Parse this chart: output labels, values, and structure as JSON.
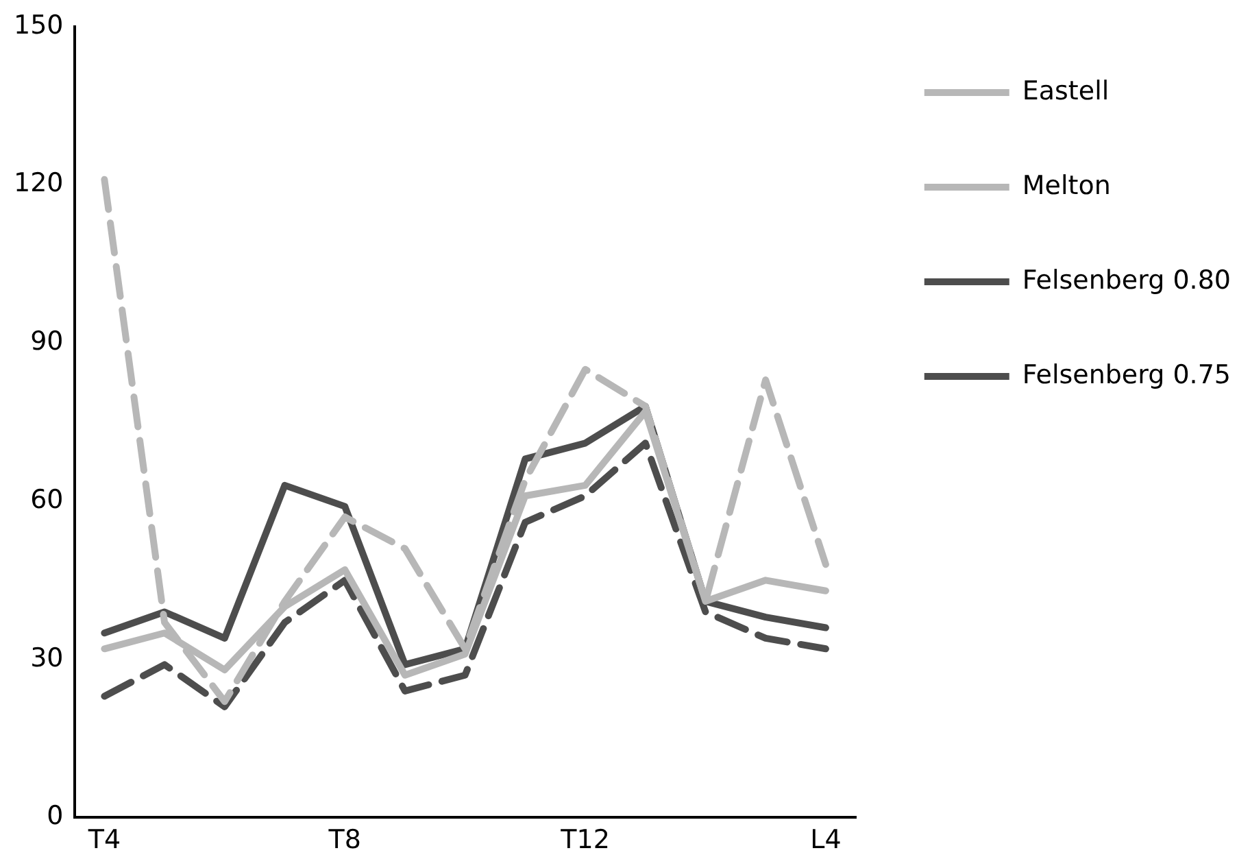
{
  "chart_data": {
    "type": "line",
    "categories": [
      "T4",
      null,
      null,
      null,
      "T8",
      null,
      null,
      null,
      "T12",
      null,
      null,
      null,
      "L4"
    ],
    "series": [
      {
        "name": "Eastell",
        "color": "#b7b7b7",
        "line_style": "dashed",
        "values": [
          121,
          37,
          22,
          41,
          57,
          51,
          32,
          64,
          85,
          78,
          41,
          83,
          48
        ]
      },
      {
        "name": "Melton",
        "color": "#b7b7b7",
        "line_style": "solid",
        "values": [
          32,
          35,
          28,
          40,
          47,
          27,
          31,
          61,
          63,
          77,
          41,
          45,
          43
        ]
      },
      {
        "name": "Felsenberg 0.80",
        "color": "#4d4d4d",
        "line_style": "solid",
        "values": [
          35,
          39,
          34,
          63,
          59,
          29,
          32,
          68,
          71,
          78,
          41,
          38,
          36
        ]
      },
      {
        "name": "Felsenberg 0.75",
        "color": "#4d4d4d",
        "line_style": "dashed",
        "values": [
          23,
          29,
          21,
          37,
          45,
          24,
          27,
          56,
          61,
          71,
          39,
          34,
          32
        ]
      }
    ],
    "ylim": [
      0,
      150
    ],
    "yticks": [
      0,
      30,
      60,
      90,
      120,
      150
    ],
    "grid": false,
    "legend": "right",
    "marker": "none"
  }
}
